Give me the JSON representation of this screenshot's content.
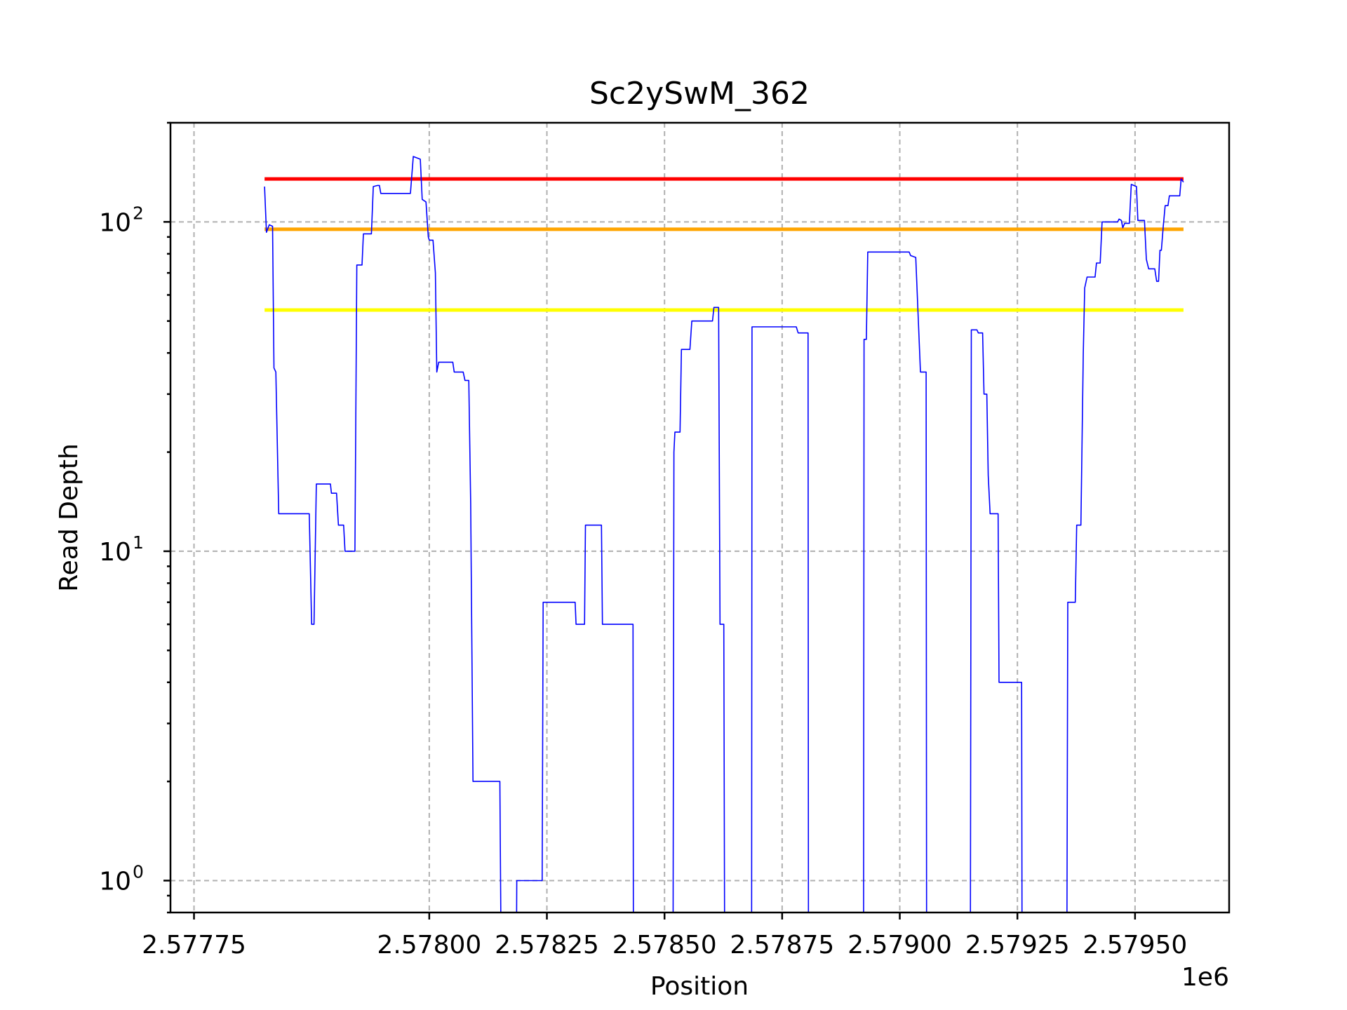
{
  "chart_data": {
    "type": "line",
    "title": "Sc2ySwM_362",
    "xlabel": "Position",
    "ylabel": "Read Depth",
    "x_offset_label": "1e6",
    "xscale": "linear",
    "yscale": "log",
    "grid": true,
    "xlim": [
      2577745,
      2577970
    ],
    "ylim": [
      0.8,
      200
    ],
    "x_ticks": [
      {
        "value": 2577750,
        "label": "2.57775"
      },
      {
        "value": 2577800,
        "label": "2.57800"
      },
      {
        "value": 2577825,
        "label": "2.57825"
      },
      {
        "value": 2577850,
        "label": "2.57850"
      },
      {
        "value": 2577875,
        "label": "2.57875"
      },
      {
        "value": 2577900,
        "label": "2.57900"
      },
      {
        "value": 2577925,
        "label": "2.57925"
      },
      {
        "value": 2577950,
        "label": "2.57950"
      }
    ],
    "y_ticks": [
      {
        "value": 1,
        "base": "10",
        "exp": "0"
      },
      {
        "value": 10,
        "base": "10",
        "exp": "1"
      },
      {
        "value": 100,
        "base": "10",
        "exp": "2"
      }
    ],
    "thresholds": [
      {
        "value": 135,
        "color": "#ff0000"
      },
      {
        "value": 95,
        "color": "#ffa500"
      },
      {
        "value": 54,
        "color": "#ffff00"
      }
    ],
    "series": [
      {
        "color": "#0000ff",
        "segments": [
          [
            [
              2577765,
              128
            ],
            [
              2577765.4,
              93
            ],
            [
              2577766,
              98
            ],
            [
              2577766.7,
              97
            ],
            [
              2577767,
              36
            ],
            [
              2577767.4,
              35
            ],
            [
              2577768,
              13
            ],
            [
              2577774.5,
              13
            ],
            [
              2577775,
              6
            ],
            [
              2577775.5,
              6
            ],
            [
              2577776,
              16
            ],
            [
              2577779,
              16
            ],
            [
              2577779.2,
              15
            ],
            [
              2577780.3,
              15
            ],
            [
              2577780.7,
              12
            ],
            [
              2577781.8,
              12
            ],
            [
              2577782.1,
              10
            ],
            [
              2577784.2,
              10
            ],
            [
              2577784.6,
              74
            ],
            [
              2577785.7,
              74
            ],
            [
              2577786,
              92
            ],
            [
              2577787.7,
              92
            ],
            [
              2577788.1,
              128
            ],
            [
              2577789,
              129
            ],
            [
              2577789.4,
              129
            ],
            [
              2577789.7,
              122
            ],
            [
              2577796,
              122
            ],
            [
              2577796.6,
              158
            ],
            [
              2577798.1,
              155
            ],
            [
              2577798.5,
              117
            ],
            [
              2577799.3,
              115
            ],
            [
              2577799.8,
              90
            ],
            [
              2577800,
              88
            ],
            [
              2577800.8,
              88
            ],
            [
              2577801.3,
              70
            ],
            [
              2577801.6,
              35
            ],
            [
              2577802,
              37.5
            ],
            [
              2577805,
              37.5
            ],
            [
              2577805.3,
              35
            ],
            [
              2577807.2,
              35
            ],
            [
              2577807.6,
              33
            ],
            [
              2577808.4,
              33
            ],
            [
              2577808.8,
              14
            ],
            [
              2577809.3,
              2
            ],
            [
              2577815,
              2
            ],
            [
              2577815.3,
              0.5
            ]
          ],
          [
            [
              2577818.5,
              0.5
            ],
            [
              2577818.6,
              1
            ],
            [
              2577824,
              1
            ],
            [
              2577824.2,
              7
            ],
            [
              2577831,
              7
            ],
            [
              2577831.2,
              6
            ],
            [
              2577833,
              6
            ],
            [
              2577833.2,
              12
            ],
            [
              2577836.6,
              12
            ],
            [
              2577836.8,
              6
            ],
            [
              2577843.3,
              6
            ],
            [
              2577843.4,
              0.5
            ]
          ],
          [
            [
              2577851.8,
              0.5
            ],
            [
              2577852,
              20
            ],
            [
              2577852.2,
              23
            ],
            [
              2577853.3,
              23
            ],
            [
              2577853.6,
              41
            ],
            [
              2577855.4,
              41
            ],
            [
              2577855.8,
              50
            ],
            [
              2577860.2,
              50
            ],
            [
              2577860.5,
              55
            ],
            [
              2577861.5,
              55
            ],
            [
              2577861.8,
              6
            ],
            [
              2577862.6,
              6
            ],
            [
              2577862.8,
              0.5
            ]
          ],
          [
            [
              2577868.5,
              0.5
            ],
            [
              2577868.6,
              48
            ],
            [
              2577878,
              48
            ],
            [
              2577878.4,
              46
            ],
            [
              2577880.5,
              46
            ],
            [
              2577880.6,
              0.5
            ]
          ],
          [
            [
              2577892.3,
              0.5
            ],
            [
              2577892.4,
              44
            ],
            [
              2577892.9,
              44
            ],
            [
              2577893.2,
              81
            ],
            [
              2577902,
              81
            ],
            [
              2577902.3,
              79
            ],
            [
              2577903.4,
              78
            ],
            [
              2577904.4,
              35
            ],
            [
              2577905.6,
              35
            ],
            [
              2577905.7,
              0.5
            ]
          ],
          [
            [
              2577915,
              0.5
            ],
            [
              2577915.2,
              47
            ],
            [
              2577916.4,
              47
            ],
            [
              2577916.7,
              46
            ],
            [
              2577917.6,
              46
            ],
            [
              2577917.9,
              30
            ],
            [
              2577918.5,
              30
            ],
            [
              2577918.8,
              17
            ],
            [
              2577919.2,
              13
            ],
            [
              2577920.9,
              13
            ],
            [
              2577921.1,
              4
            ],
            [
              2577925.9,
              4
            ],
            [
              2577926,
              0.5
            ]
          ],
          [
            [
              2577935.5,
              0.5
            ],
            [
              2577935.7,
              7
            ],
            [
              2577937.3,
              7
            ],
            [
              2577937.6,
              12
            ],
            [
              2577938.5,
              12
            ],
            [
              2577939,
              40
            ],
            [
              2577939.3,
              63
            ],
            [
              2577939.8,
              68
            ],
            [
              2577941.5,
              68
            ],
            [
              2577941.8,
              75
            ],
            [
              2577942.6,
              75
            ],
            [
              2577943,
              100
            ],
            [
              2577946.3,
              100
            ],
            [
              2577946.6,
              102
            ],
            [
              2577947.1,
              101
            ],
            [
              2577947.4,
              96
            ],
            [
              2577947.8,
              99
            ],
            [
              2577948.8,
              99
            ],
            [
              2577949.2,
              130
            ],
            [
              2577950.3,
              128
            ],
            [
              2577950.6,
              101
            ],
            [
              2577952,
              101
            ],
            [
              2577952.4,
              77
            ],
            [
              2577952.9,
              72
            ],
            [
              2577954.2,
              72
            ],
            [
              2577954.6,
              66
            ],
            [
              2577955,
              66
            ],
            [
              2577955.3,
              82
            ],
            [
              2577955.6,
              82
            ],
            [
              2577956,
              97
            ],
            [
              2577956.4,
              112
            ],
            [
              2577957,
              112
            ],
            [
              2577957.3,
              120
            ],
            [
              2577959.5,
              120
            ],
            [
              2577959.8,
              135
            ],
            [
              2577960.3,
              132
            ]
          ]
        ]
      }
    ]
  }
}
